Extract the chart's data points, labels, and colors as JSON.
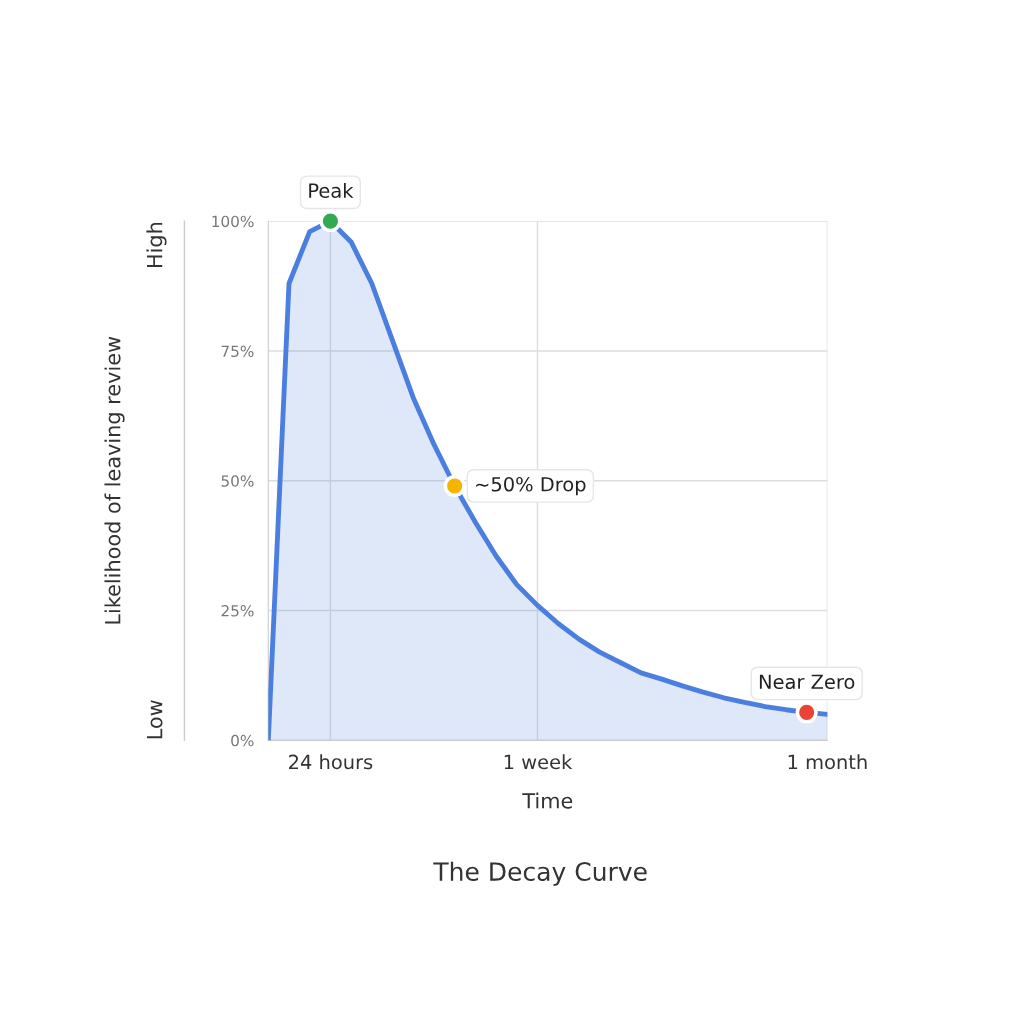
{
  "chart_data": {
    "type": "area",
    "title": "The Decay Curve",
    "xlabel": "Time",
    "ylabel": "Likelihood of leaving review",
    "categories": [
      null,
      null,
      null,
      "24 hours",
      null,
      null,
      null,
      null,
      null,
      null,
      null,
      null,
      null,
      "1 week",
      null,
      null,
      null,
      null,
      null,
      null,
      null,
      null,
      null,
      null,
      null,
      null,
      null,
      "1 month"
    ],
    "ylim": [
      0,
      100
    ],
    "yticks": [
      {
        "value": 0,
        "label": "0%"
      },
      {
        "value": 25,
        "label": "25%"
      },
      {
        "value": 50,
        "label": "50%"
      },
      {
        "value": 75,
        "label": "75%"
      },
      {
        "value": 100,
        "label": "100%"
      }
    ],
    "grid": true,
    "series": [
      {
        "color": "#4a7fe0",
        "values": [
          0,
          88,
          98,
          100,
          96,
          88,
          77,
          66,
          57,
          49,
          42,
          35.5,
          30,
          26,
          22.5,
          19.5,
          17,
          15,
          13,
          11.8,
          10.5,
          9.3,
          8.2,
          7.3,
          6.5,
          5.9,
          5.4,
          5
        ]
      },
      {
        "type": "scatter",
        "values": [
          null,
          null,
          null,
          100,
          null,
          null,
          null,
          null,
          null,
          49,
          null,
          null,
          null,
          null,
          null,
          null,
          null,
          null,
          null,
          null,
          null,
          null,
          null,
          null,
          null,
          null,
          5.4,
          null
        ],
        "colors": [
          null,
          null,
          null,
          "#34a853",
          null,
          null,
          null,
          null,
          null,
          "#f4b400",
          null,
          null,
          null,
          null,
          null,
          null,
          null,
          null,
          null,
          null,
          null,
          null,
          null,
          null,
          null,
          null,
          "#ea4335",
          null
        ],
        "marker": "circle"
      }
    ],
    "annotations": [
      "High",
      "Low",
      "Peak",
      "~50% Drop",
      "Near Zero"
    ]
  }
}
